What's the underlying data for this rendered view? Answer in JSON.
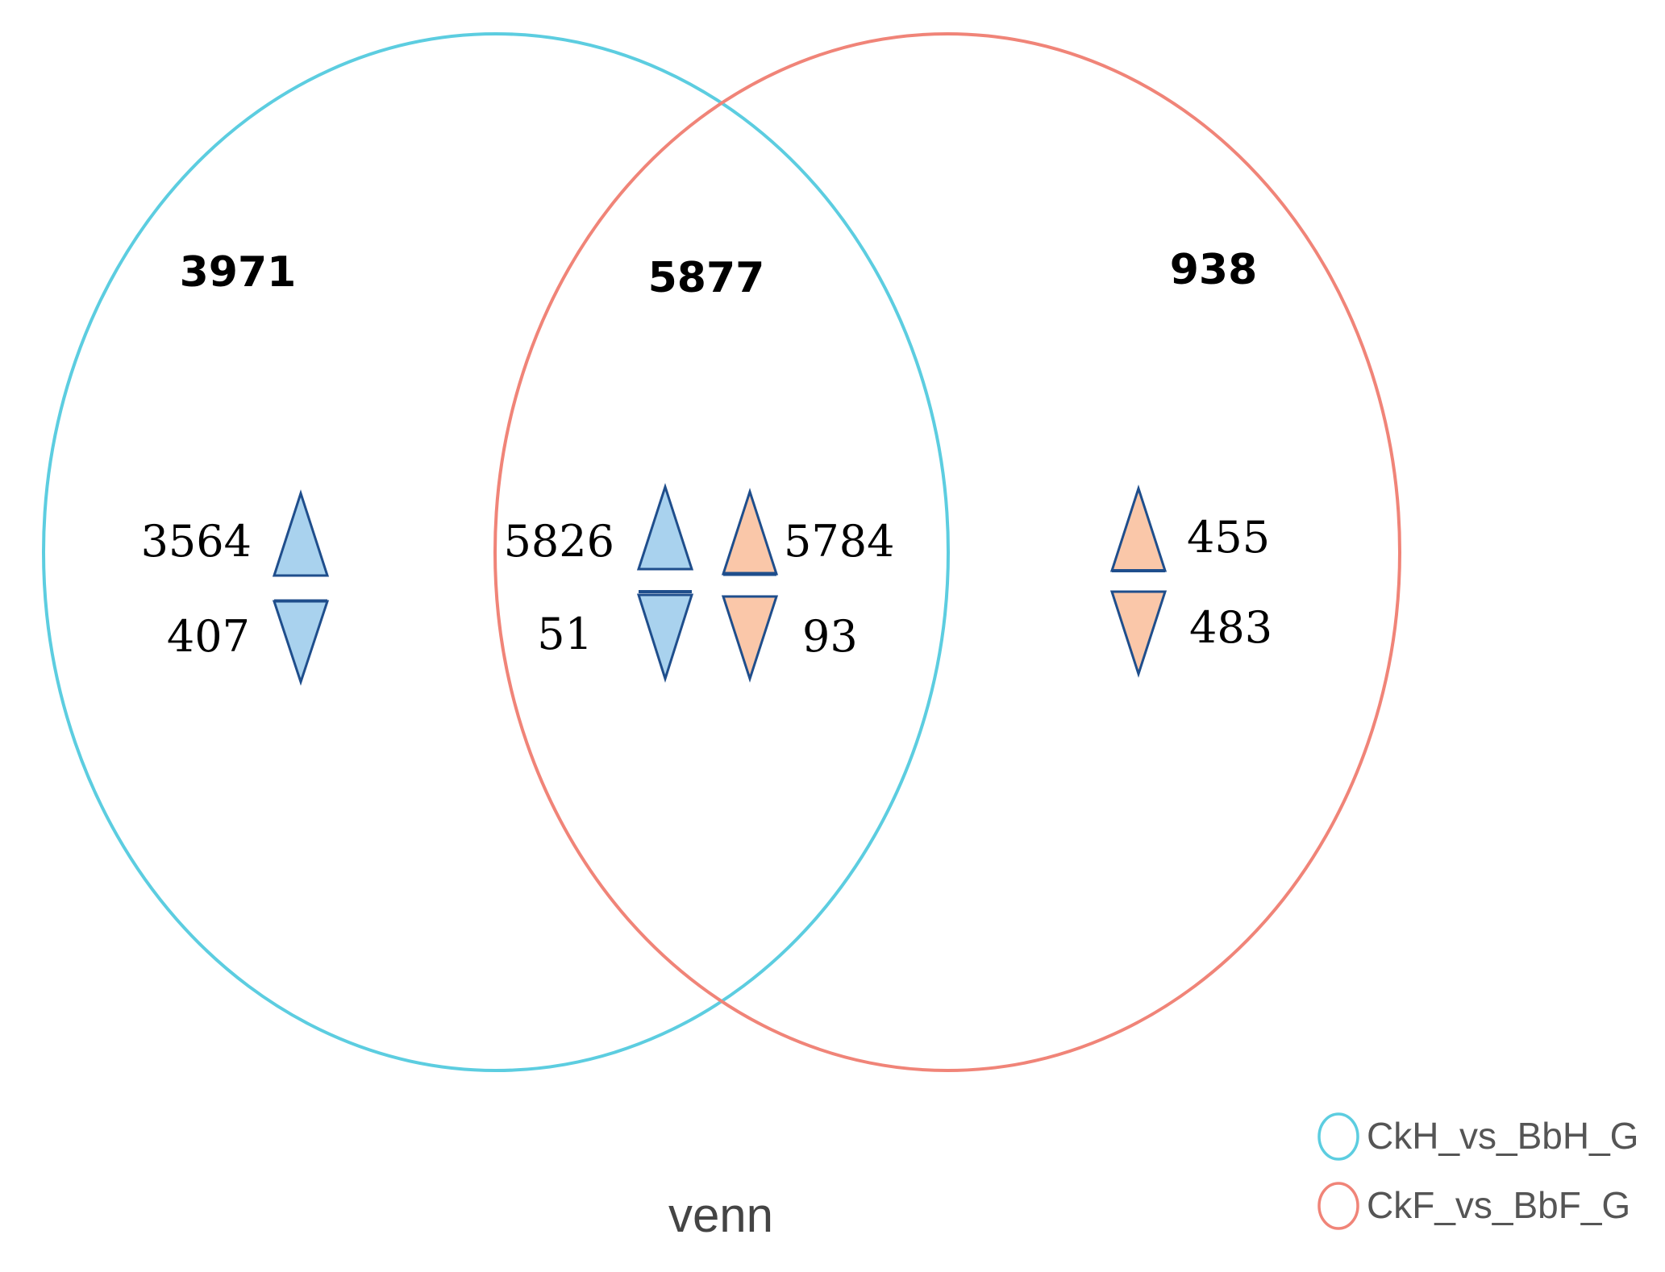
{
  "colors": {
    "set_a": "#5CCDE0",
    "set_b": "#F08478",
    "blue_fill": "#A9D2EE",
    "orange_fill": "#FAC7A9",
    "arrow_stroke": "#1F4E8C"
  },
  "regions": {
    "left_only": {
      "total": "3971",
      "up": "3564",
      "down": "407"
    },
    "overlap": {
      "total": "5877",
      "up_a": "5826",
      "down_a": "51",
      "up_b": "5784",
      "down_b": "93"
    },
    "right_only": {
      "total": "938",
      "up": "455",
      "down": "483"
    }
  },
  "legend": {
    "set_a_label": "CkH_vs_BbH_G",
    "set_b_label": "CkF_vs_BbF_G"
  },
  "caption": "venn"
}
